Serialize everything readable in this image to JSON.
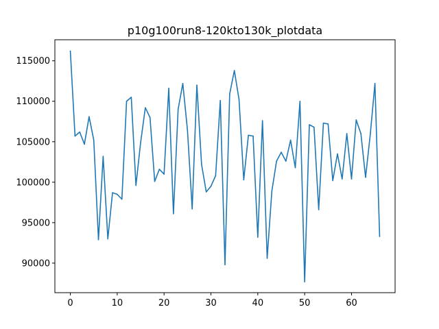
{
  "chart_data": {
    "type": "line",
    "title": "p10g100run8-120kto130k_plotdata",
    "xlabel": "",
    "ylabel": "",
    "xlim": [
      -3.3,
      69.3
    ],
    "ylim": [
      86350,
      117600
    ],
    "x_ticks": [
      0,
      10,
      20,
      30,
      40,
      50,
      60
    ],
    "y_ticks": [
      90000,
      95000,
      100000,
      105000,
      110000,
      115000
    ],
    "grid": false,
    "legend": "none",
    "series": [
      {
        "color": "#1f77b4",
        "x": [
          0,
          1,
          2,
          3,
          4,
          5,
          6,
          7,
          8,
          9,
          10,
          11,
          12,
          13,
          14,
          15,
          16,
          17,
          18,
          19,
          20,
          21,
          22,
          23,
          24,
          25,
          26,
          27,
          28,
          29,
          30,
          31,
          32,
          33,
          34,
          35,
          36,
          37,
          38,
          39,
          40,
          41,
          42,
          43,
          44,
          45,
          46,
          47,
          48,
          49,
          50,
          51,
          52,
          53,
          54,
          55,
          56,
          57,
          58,
          59,
          60,
          61,
          62,
          63,
          64,
          65,
          66
        ],
        "values": [
          116200,
          105700,
          106200,
          104700,
          108100,
          105200,
          92900,
          103200,
          93000,
          98700,
          98500,
          97900,
          110000,
          110500,
          99600,
          104900,
          109200,
          108000,
          100100,
          101600,
          101000,
          111600,
          96100,
          109000,
          112200,
          106400,
          96700,
          112000,
          102200,
          98800,
          99500,
          100800,
          110100,
          89800,
          110900,
          113800,
          110200,
          100300,
          105800,
          105700,
          93200,
          107600,
          90600,
          98900,
          102600,
          103700,
          102600,
          105200,
          101800,
          110000,
          87700,
          107100,
          106800,
          96600,
          107300,
          107200,
          100200,
          103500,
          100400,
          106000,
          100400,
          107700,
          106000,
          100600,
          105900,
          112200,
          93300
        ]
      }
    ]
  }
}
